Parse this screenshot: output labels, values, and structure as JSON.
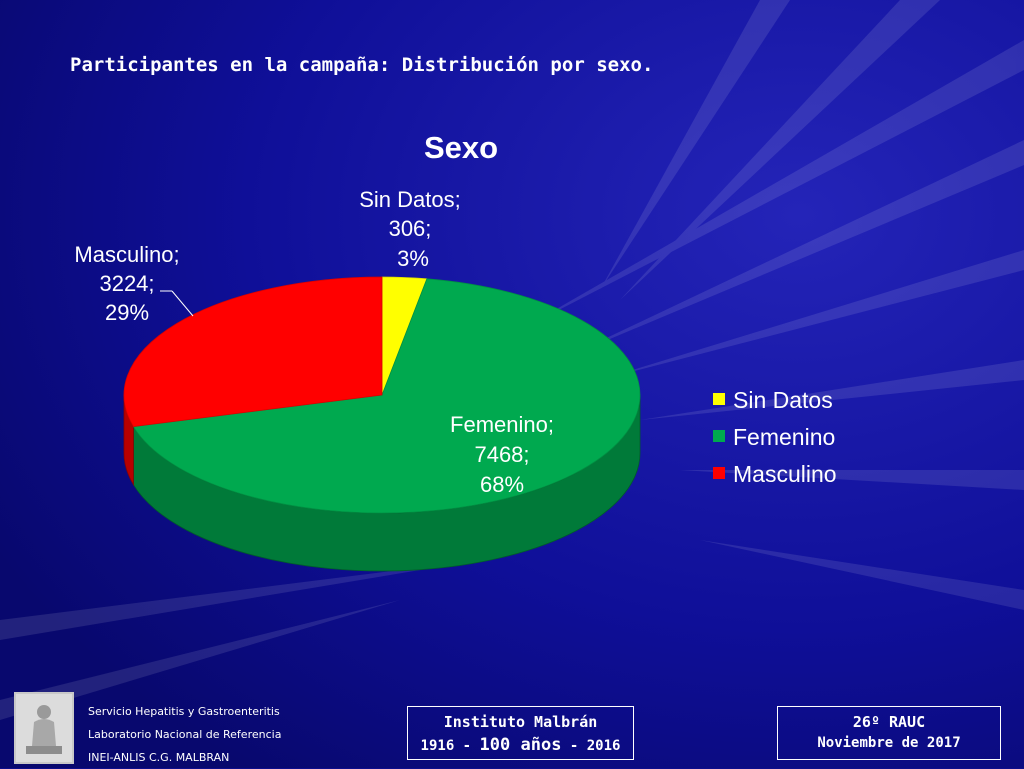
{
  "slide": {
    "title": "Participantes en la campaña: Distribución por sexo."
  },
  "chart_data": {
    "type": "pie",
    "title": "Sexo",
    "series": [
      {
        "categories": [
          "Sin Datos",
          "Femenino",
          "Masculino"
        ],
        "values": [
          306,
          7468,
          3224
        ],
        "percent_labels": [
          "3%",
          "68%",
          "29%"
        ],
        "colors": [
          "#ffff00",
          "#00a94f",
          "#ff0000"
        ]
      }
    ],
    "data_labels": [
      {
        "name": "Sin Datos;",
        "value": "306;",
        "pct": "3%"
      },
      {
        "name": "Femenino;",
        "value": "7468;",
        "pct": "68%"
      },
      {
        "name": "Masculino;",
        "value": "3224;",
        "pct": "29%"
      }
    ],
    "legend": {
      "position": "right",
      "items": [
        "Sin Datos",
        "Femenino",
        "Masculino"
      ]
    },
    "style": "3d"
  },
  "footer": {
    "line1": "Servicio Hepatitis y Gastroenteritis",
    "line2": "Laboratorio Nacional de Referencia",
    "line3": "INEI-ANLIS C.G. MALBRAN",
    "institute_name": "Instituto Malbrán",
    "years_prefix": "1916 - ",
    "years_big": "100 años",
    "years_suffix": " - 2016",
    "event_name": "26º RAUC",
    "event_date": "Noviembre de 2017"
  },
  "colors": {
    "background": "#0d0d8c",
    "text": "#ffffff"
  }
}
